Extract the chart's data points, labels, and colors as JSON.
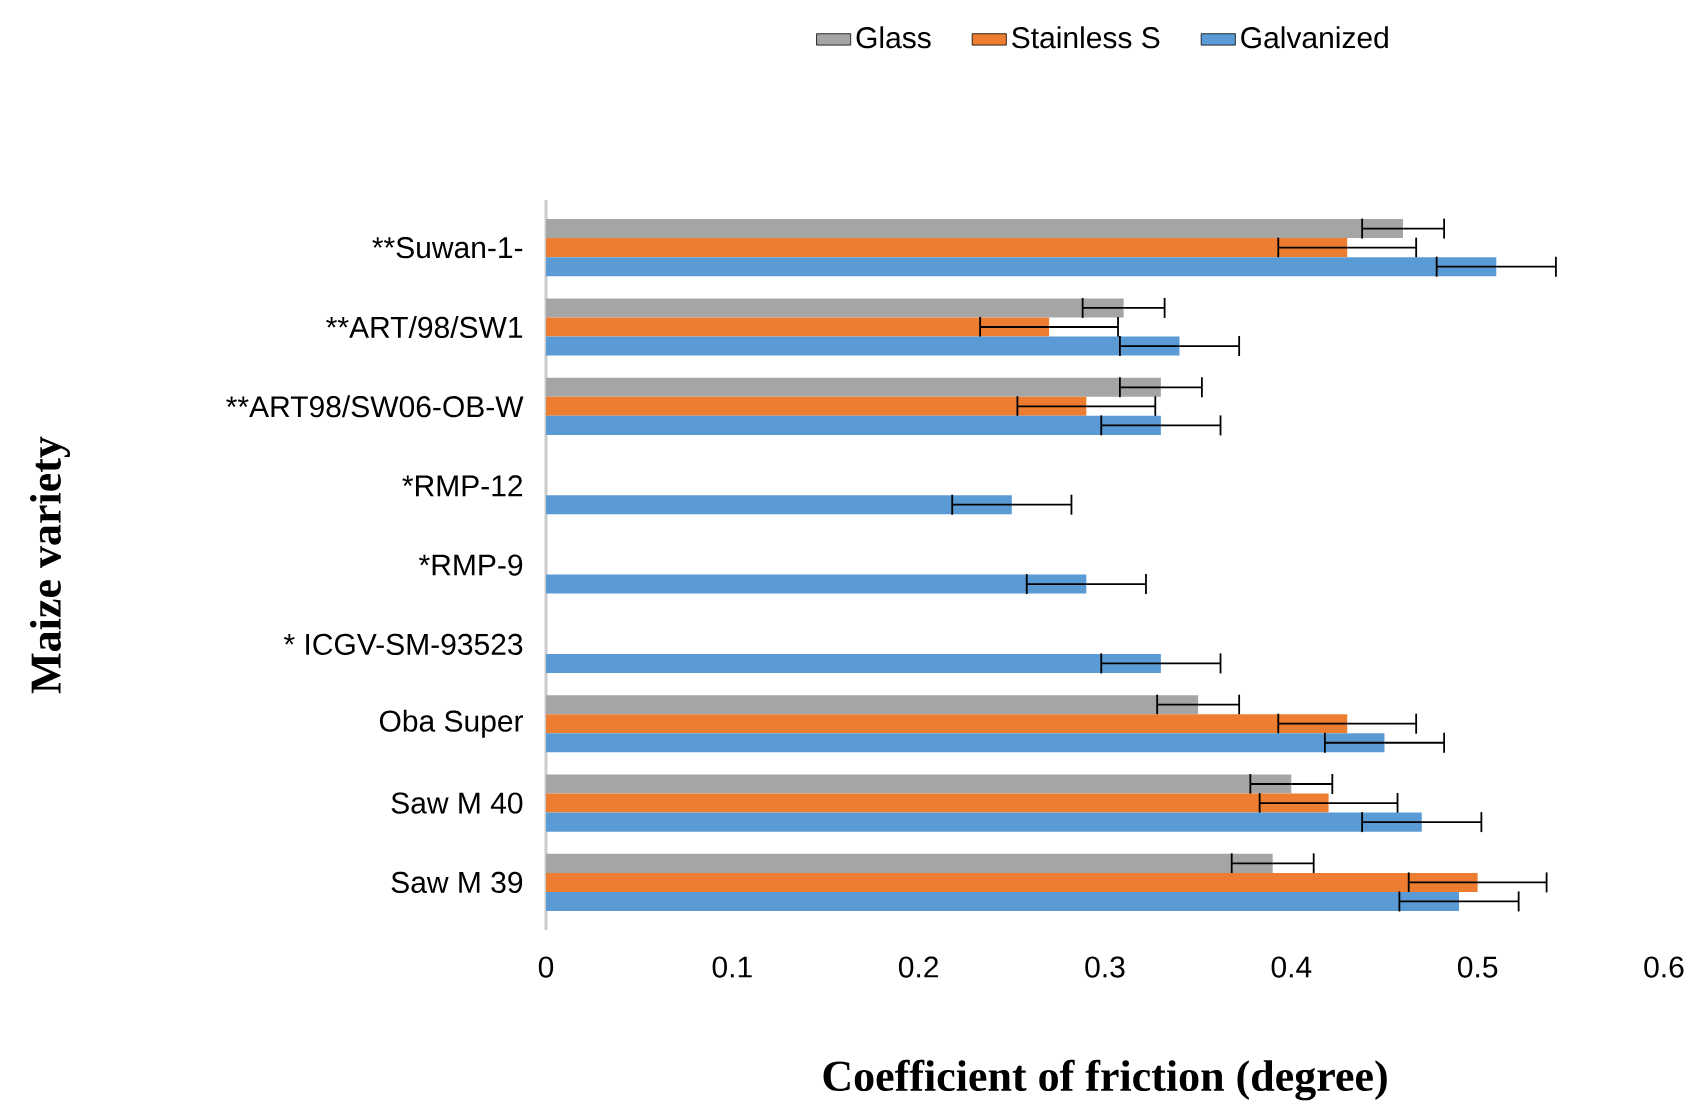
{
  "chart_data": {
    "type": "bar",
    "orientation": "horizontal",
    "xlabel": "Coefficient of friction (degree)",
    "ylabel": "Maize variety",
    "categories": [
      "**Suwan-1-",
      "**ART/98/SW1",
      "**ART98/SW06-OB-W",
      "*RMP-12",
      "*RMP-9",
      "* ICGV-SM-93523",
      "Oba Super",
      "Saw M 40",
      "Saw M 39"
    ],
    "series": [
      {
        "name": "Glass",
        "color": "#a5a5a5",
        "values": [
          0.46,
          0.31,
          0.33,
          null,
          null,
          null,
          0.35,
          0.4,
          0.39
        ],
        "errors": [
          0.022,
          0.022,
          0.022,
          null,
          null,
          null,
          0.022,
          0.022,
          0.022
        ]
      },
      {
        "name": "Stainless S",
        "color": "#ed7d31",
        "values": [
          0.43,
          0.27,
          0.29,
          null,
          null,
          null,
          0.43,
          0.42,
          0.5
        ],
        "errors": [
          0.037,
          0.037,
          0.037,
          null,
          null,
          null,
          0.037,
          0.037,
          0.037
        ]
      },
      {
        "name": "Galvanized",
        "color": "#5b9bd5",
        "values": [
          0.51,
          0.34,
          0.33,
          0.25,
          0.29,
          0.33,
          0.45,
          0.47,
          0.49
        ],
        "errors": [
          0.032,
          0.032,
          0.032,
          0.032,
          0.032,
          0.032,
          0.032,
          0.032,
          0.032
        ]
      }
    ],
    "xlim": [
      0,
      0.6
    ],
    "xticks": [
      0,
      0.1,
      0.2,
      0.3,
      0.4,
      0.5,
      0.6
    ],
    "grid": false,
    "legend": "top"
  }
}
